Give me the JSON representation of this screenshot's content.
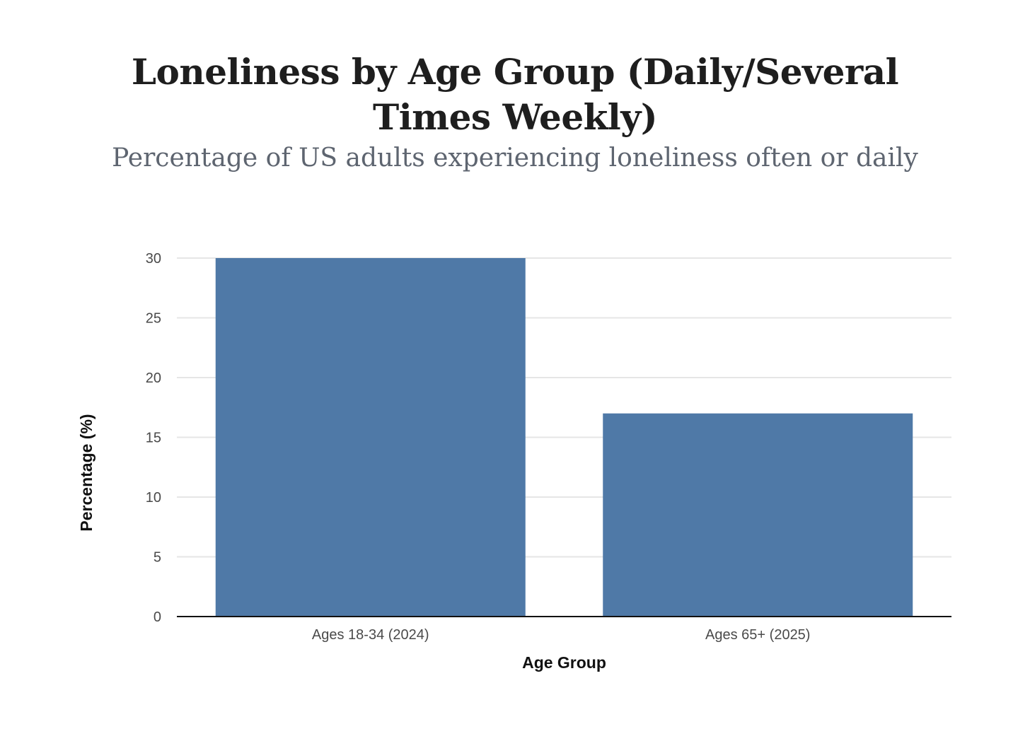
{
  "chart_data": {
    "type": "bar",
    "title": "Loneliness by Age Group (Daily/Several Times Weekly)",
    "subtitle": "Percentage of US adults experiencing loneliness often or daily",
    "xlabel": "Age Group",
    "ylabel": "Percentage (%)",
    "categories": [
      "Ages 18-34 (2024)",
      "Ages 65+ (2025)"
    ],
    "values": [
      30,
      17
    ],
    "ylim": [
      0,
      30
    ],
    "yticks": [
      0,
      5,
      10,
      15,
      20,
      25,
      30
    ],
    "grid": true,
    "legend": "none",
    "bar_color": "#4f79a7",
    "grid_color": "#e6e6e6",
    "axis_color": "#111111"
  }
}
